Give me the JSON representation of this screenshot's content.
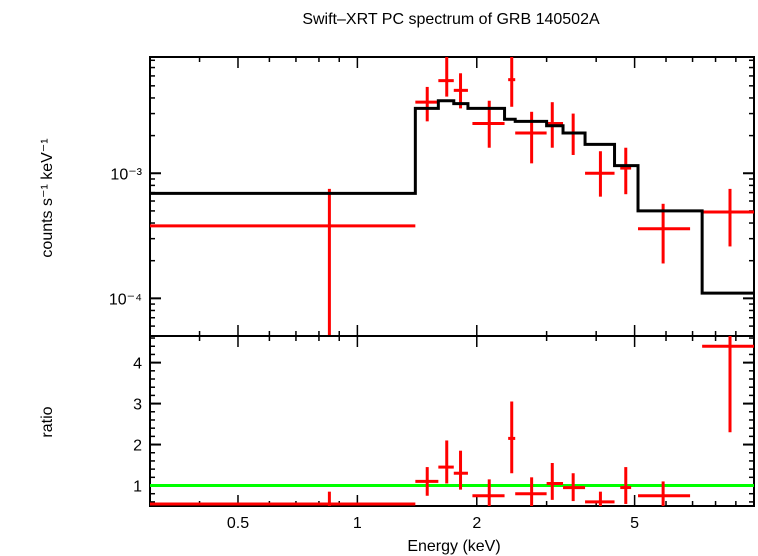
{
  "chart_data": {
    "type": "scatter",
    "title": "Swift–XRT PC spectrum of GRB 140502A",
    "xlabel": "Energy (keV)",
    "x_scale": "log",
    "xlim": [
      0.3,
      10
    ],
    "x_ticks": [
      {
        "value": 0.5,
        "label": "0.5"
      },
      {
        "value": 1,
        "label": "1"
      },
      {
        "value": 2,
        "label": "2"
      },
      {
        "value": 5,
        "label": "5"
      }
    ],
    "grid": false,
    "colors": {
      "data": "#ff0000",
      "model": "#000000",
      "unity": "#00ff00"
    },
    "panels": [
      {
        "name": "spectrum",
        "ylabel": "counts s⁻¹ keV⁻¹",
        "y_scale": "log",
        "ylim": [
          5e-05,
          0.0085
        ],
        "y_ticks": [
          {
            "value": 0.001,
            "label": "10⁻³"
          },
          {
            "value": 0.0001,
            "label": "10⁻⁴"
          }
        ],
        "series": [
          {
            "type": "errorbar",
            "points": [
              {
                "x": 0.85,
                "xlo": 0.3,
                "xhi": 1.4,
                "y": 0.00038,
                "ylo": 2e-05,
                "yhi": 0.00075
              },
              {
                "x": 1.5,
                "xlo": 1.4,
                "xhi": 1.6,
                "y": 0.0037,
                "ylo": 0.0026,
                "yhi": 0.0049
              },
              {
                "x": 1.68,
                "xlo": 1.6,
                "xhi": 1.75,
                "y": 0.0055,
                "ylo": 0.0041,
                "yhi": 0.0085
              },
              {
                "x": 1.82,
                "xlo": 1.75,
                "xhi": 1.9,
                "y": 0.0046,
                "ylo": 0.0033,
                "yhi": 0.0063
              },
              {
                "x": 2.15,
                "xlo": 1.95,
                "xhi": 2.35,
                "y": 0.0025,
                "ylo": 0.0016,
                "yhi": 0.0038
              },
              {
                "x": 2.45,
                "xlo": 2.4,
                "xhi": 2.5,
                "y": 0.0056,
                "ylo": 0.0034,
                "yhi": 0.0085
              },
              {
                "x": 2.75,
                "xlo": 2.5,
                "xhi": 3.0,
                "y": 0.0021,
                "ylo": 0.0012,
                "yhi": 0.0031
              },
              {
                "x": 3.1,
                "xlo": 3.0,
                "xhi": 3.3,
                "y": 0.0025,
                "ylo": 0.0016,
                "yhi": 0.0037
              },
              {
                "x": 3.5,
                "xlo": 3.3,
                "xhi": 3.75,
                "y": 0.0021,
                "ylo": 0.0014,
                "yhi": 0.003
              },
              {
                "x": 4.1,
                "xlo": 3.75,
                "xhi": 4.45,
                "y": 0.001,
                "ylo": 0.00065,
                "yhi": 0.0015
              },
              {
                "x": 4.75,
                "xlo": 4.6,
                "xhi": 4.9,
                "y": 0.0011,
                "ylo": 0.00068,
                "yhi": 0.0016
              },
              {
                "x": 5.9,
                "xlo": 5.1,
                "xhi": 6.9,
                "y": 0.00036,
                "ylo": 0.00019,
                "yhi": 0.00057
              },
              {
                "x": 8.7,
                "xlo": 7.4,
                "xhi": 10.0,
                "y": 0.00049,
                "ylo": 0.00026,
                "yhi": 0.00075
              }
            ]
          },
          {
            "type": "step",
            "points": [
              {
                "x0": 0.3,
                "x1": 1.4,
                "y": 0.00069
              },
              {
                "x0": 1.4,
                "x1": 1.6,
                "y": 0.0033
              },
              {
                "x0": 1.6,
                "x1": 1.75,
                "y": 0.0038
              },
              {
                "x0": 1.75,
                "x1": 1.9,
                "y": 0.0036
              },
              {
                "x0": 1.9,
                "x1": 2.35,
                "y": 0.0033
              },
              {
                "x0": 2.35,
                "x1": 2.5,
                "y": 0.0027
              },
              {
                "x0": 2.5,
                "x1": 3.0,
                "y": 0.0026
              },
              {
                "x0": 3.0,
                "x1": 3.3,
                "y": 0.0024
              },
              {
                "x0": 3.3,
                "x1": 3.75,
                "y": 0.0021
              },
              {
                "x0": 3.75,
                "x1": 4.45,
                "y": 0.0017
              },
              {
                "x0": 4.45,
                "x1": 5.1,
                "y": 0.00115
              },
              {
                "x0": 5.1,
                "x1": 7.4,
                "y": 0.0005
              },
              {
                "x0": 7.4,
                "x1": 10.0,
                "y": 0.00011
              }
            ]
          }
        ]
      },
      {
        "name": "ratio",
        "ylabel": "ratio",
        "y_scale": "linear",
        "ylim": [
          0.5,
          4.65
        ],
        "y_ticks": [
          {
            "value": 1,
            "label": "1"
          },
          {
            "value": 2,
            "label": "2"
          },
          {
            "value": 3,
            "label": "3"
          },
          {
            "value": 4,
            "label": "4"
          }
        ],
        "unity_line": 1,
        "series": [
          {
            "type": "errorbar",
            "points": [
              {
                "x": 0.85,
                "xlo": 0.3,
                "xhi": 1.4,
                "y": 0.55,
                "ylo": 0.5,
                "yhi": 0.85
              },
              {
                "x": 1.5,
                "xlo": 1.4,
                "xhi": 1.6,
                "y": 1.1,
                "ylo": 0.75,
                "yhi": 1.45
              },
              {
                "x": 1.68,
                "xlo": 1.6,
                "xhi": 1.75,
                "y": 1.45,
                "ylo": 1.05,
                "yhi": 2.1
              },
              {
                "x": 1.82,
                "xlo": 1.75,
                "xhi": 1.9,
                "y": 1.3,
                "ylo": 0.9,
                "yhi": 1.85
              },
              {
                "x": 2.15,
                "xlo": 1.95,
                "xhi": 2.35,
                "y": 0.75,
                "ylo": 0.5,
                "yhi": 1.15
              },
              {
                "x": 2.45,
                "xlo": 2.4,
                "xhi": 2.5,
                "y": 2.15,
                "ylo": 1.3,
                "yhi": 3.05
              },
              {
                "x": 2.75,
                "xlo": 2.5,
                "xhi": 3.0,
                "y": 0.8,
                "ylo": 0.5,
                "yhi": 1.2
              },
              {
                "x": 3.1,
                "xlo": 3.0,
                "xhi": 3.3,
                "y": 1.05,
                "ylo": 0.65,
                "yhi": 1.55
              },
              {
                "x": 3.5,
                "xlo": 3.3,
                "xhi": 3.75,
                "y": 0.95,
                "ylo": 0.62,
                "yhi": 1.3
              },
              {
                "x": 4.1,
                "xlo": 3.75,
                "xhi": 4.45,
                "y": 0.6,
                "ylo": 0.5,
                "yhi": 0.85
              },
              {
                "x": 4.75,
                "xlo": 4.6,
                "xhi": 4.9,
                "y": 0.95,
                "ylo": 0.55,
                "yhi": 1.45
              },
              {
                "x": 5.9,
                "xlo": 5.1,
                "xhi": 6.9,
                "y": 0.75,
                "ylo": 0.5,
                "yhi": 1.1
              },
              {
                "x": 8.7,
                "xlo": 7.4,
                "xhi": 10.0,
                "y": 4.4,
                "ylo": 2.3,
                "yhi": 4.65
              }
            ]
          }
        ]
      }
    ]
  }
}
